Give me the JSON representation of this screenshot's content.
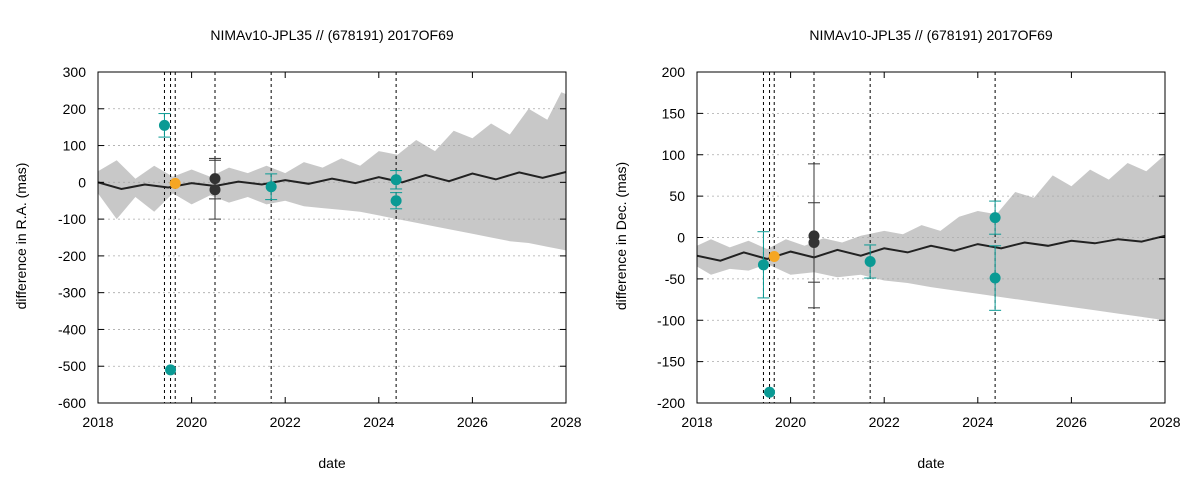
{
  "chart_data": [
    {
      "type": "scatter",
      "title": "NIMAv10-JPL35 // (678191) 2017OF69",
      "xlabel": "date",
      "ylabel": "difference in R.A. (mas)",
      "xlim": [
        2018,
        2028
      ],
      "ylim": [
        -600,
        300
      ],
      "xticks": [
        2018,
        2020,
        2022,
        2024,
        2026,
        2028
      ],
      "yticks": [
        300,
        200,
        100,
        0,
        -100,
        -200,
        -300,
        -400,
        -500,
        -600
      ],
      "grid": "horizontal dotted",
      "vlines": [
        2019.42,
        2019.55,
        2019.65,
        2020.5,
        2021.7,
        2024.37
      ],
      "model_line": [
        [
          2018,
          0
        ],
        [
          2018.5,
          -18
        ],
        [
          2019,
          -6
        ],
        [
          2019.5,
          -14
        ],
        [
          2020,
          -2
        ],
        [
          2020.5,
          -10
        ],
        [
          2021,
          2
        ],
        [
          2021.5,
          -6
        ],
        [
          2022,
          6
        ],
        [
          2022.5,
          -4
        ],
        [
          2023,
          10
        ],
        [
          2023.5,
          -2
        ],
        [
          2024,
          14
        ],
        [
          2024.5,
          0
        ],
        [
          2025,
          20
        ],
        [
          2025.5,
          3
        ],
        [
          2026,
          24
        ],
        [
          2026.5,
          8
        ],
        [
          2027,
          27
        ],
        [
          2027.5,
          12
        ],
        [
          2028,
          28
        ]
      ],
      "uncertainty_upper": [
        [
          2018,
          30
        ],
        [
          2018.4,
          60
        ],
        [
          2018.8,
          10
        ],
        [
          2019.2,
          45
        ],
        [
          2019.6,
          15
        ],
        [
          2020,
          35
        ],
        [
          2020.4,
          15
        ],
        [
          2020.8,
          40
        ],
        [
          2021.2,
          25
        ],
        [
          2021.6,
          45
        ],
        [
          2022,
          25
        ],
        [
          2022.4,
          55
        ],
        [
          2022.8,
          40
        ],
        [
          2023.2,
          65
        ],
        [
          2023.6,
          45
        ],
        [
          2024,
          85
        ],
        [
          2024.4,
          75
        ],
        [
          2024.8,
          115
        ],
        [
          2025.2,
          85
        ],
        [
          2025.6,
          140
        ],
        [
          2026,
          120
        ],
        [
          2026.4,
          160
        ],
        [
          2026.8,
          130
        ],
        [
          2027.2,
          200
        ],
        [
          2027.6,
          170
        ],
        [
          2027.9,
          245
        ],
        [
          2028,
          240
        ]
      ],
      "uncertainty_lower": [
        [
          2018,
          -30
        ],
        [
          2018.4,
          -100
        ],
        [
          2018.8,
          -40
        ],
        [
          2019.2,
          -80
        ],
        [
          2019.6,
          -30
        ],
        [
          2020,
          -60
        ],
        [
          2020.4,
          -35
        ],
        [
          2020.8,
          -55
        ],
        [
          2021.2,
          -40
        ],
        [
          2021.6,
          -60
        ],
        [
          2022,
          -50
        ],
        [
          2022.4,
          -65
        ],
        [
          2022.8,
          -70
        ],
        [
          2023.2,
          -75
        ],
        [
          2023.6,
          -80
        ],
        [
          2024,
          -90
        ],
        [
          2024.4,
          -100
        ],
        [
          2024.8,
          -110
        ],
        [
          2025.2,
          -120
        ],
        [
          2025.6,
          -130
        ],
        [
          2026,
          -140
        ],
        [
          2026.4,
          -150
        ],
        [
          2026.8,
          -160
        ],
        [
          2027.2,
          -165
        ],
        [
          2027.6,
          -175
        ],
        [
          2028,
          -185
        ]
      ],
      "points": [
        {
          "x": 2019.42,
          "y": 155,
          "err": 32,
          "group": "teal"
        },
        {
          "x": 2019.55,
          "y": -510,
          "err": 0,
          "group": "teal"
        },
        {
          "x": 2019.65,
          "y": -3,
          "err": 0,
          "group": "orange"
        },
        {
          "x": 2020.5,
          "y": 10,
          "err": 55,
          "group": "dark"
        },
        {
          "x": 2020.5,
          "y": -20,
          "err": 80,
          "group": "dark"
        },
        {
          "x": 2021.7,
          "y": -12,
          "err": 35,
          "group": "teal"
        },
        {
          "x": 2024.37,
          "y": 7,
          "err": 25,
          "group": "teal"
        },
        {
          "x": 2024.37,
          "y": -50,
          "err": 22,
          "group": "teal"
        }
      ]
    },
    {
      "type": "scatter",
      "title": "NIMAv10-JPL35 // (678191) 2017OF69",
      "xlabel": "date",
      "ylabel": "difference in Dec. (mas)",
      "xlim": [
        2018,
        2028
      ],
      "ylim": [
        -200,
        200
      ],
      "xticks": [
        2018,
        2020,
        2022,
        2024,
        2026,
        2028
      ],
      "yticks": [
        200,
        150,
        100,
        50,
        0,
        -50,
        -100,
        -150,
        -200
      ],
      "grid": "horizontal dotted",
      "vlines": [
        2019.42,
        2019.55,
        2019.65,
        2020.5,
        2021.7,
        2024.37
      ],
      "model_line": [
        [
          2018,
          -22
        ],
        [
          2018.5,
          -28
        ],
        [
          2019,
          -18
        ],
        [
          2019.5,
          -26
        ],
        [
          2020,
          -17
        ],
        [
          2020.5,
          -24
        ],
        [
          2021,
          -15
        ],
        [
          2021.5,
          -22
        ],
        [
          2022,
          -13
        ],
        [
          2022.5,
          -18
        ],
        [
          2023,
          -10
        ],
        [
          2023.5,
          -16
        ],
        [
          2024,
          -8
        ],
        [
          2024.5,
          -13
        ],
        [
          2025,
          -6
        ],
        [
          2025.5,
          -10
        ],
        [
          2026,
          -4
        ],
        [
          2026.5,
          -7
        ],
        [
          2027,
          -2
        ],
        [
          2027.5,
          -5
        ],
        [
          2028,
          2
        ]
      ],
      "uncertainty_upper": [
        [
          2018,
          -10
        ],
        [
          2018.3,
          -2
        ],
        [
          2018.7,
          -12
        ],
        [
          2019.1,
          -4
        ],
        [
          2019.5,
          -14
        ],
        [
          2019.9,
          -2
        ],
        [
          2020.3,
          -10
        ],
        [
          2020.7,
          -1
        ],
        [
          2021.1,
          -6
        ],
        [
          2021.5,
          2
        ],
        [
          2022,
          8
        ],
        [
          2022.4,
          4
        ],
        [
          2022.8,
          15
        ],
        [
          2023.2,
          8
        ],
        [
          2023.6,
          25
        ],
        [
          2024,
          32
        ],
        [
          2024.4,
          28
        ],
        [
          2024.8,
          55
        ],
        [
          2025.2,
          48
        ],
        [
          2025.6,
          75
        ],
        [
          2026,
          62
        ],
        [
          2026.4,
          82
        ],
        [
          2026.8,
          70
        ],
        [
          2027.2,
          90
        ],
        [
          2027.6,
          80
        ],
        [
          2028,
          100
        ]
      ],
      "uncertainty_lower": [
        [
          2018,
          -35
        ],
        [
          2018.3,
          -45
        ],
        [
          2018.7,
          -38
        ],
        [
          2019.1,
          -40
        ],
        [
          2019.5,
          -32
        ],
        [
          2020,
          -45
        ],
        [
          2020.5,
          -42
        ],
        [
          2021,
          -48
        ],
        [
          2021.5,
          -45
        ],
        [
          2022,
          -52
        ],
        [
          2022.5,
          -55
        ],
        [
          2023,
          -60
        ],
        [
          2023.5,
          -64
        ],
        [
          2024,
          -68
        ],
        [
          2024.5,
          -72
        ],
        [
          2025,
          -76
        ],
        [
          2025.5,
          -80
        ],
        [
          2026,
          -84
        ],
        [
          2026.5,
          -88
        ],
        [
          2027,
          -92
        ],
        [
          2027.5,
          -96
        ],
        [
          2028,
          -100
        ]
      ],
      "points": [
        {
          "x": 2019.42,
          "y": -33,
          "err": 40,
          "group": "teal"
        },
        {
          "x": 2019.55,
          "y": -187,
          "err": 0,
          "group": "teal"
        },
        {
          "x": 2019.65,
          "y": -23,
          "err": 0,
          "group": "orange"
        },
        {
          "x": 2020.5,
          "y": 2,
          "err": 87,
          "group": "dark"
        },
        {
          "x": 2020.5,
          "y": -6,
          "err": 48,
          "group": "dark"
        },
        {
          "x": 2021.7,
          "y": -29,
          "err": 20,
          "group": "teal"
        },
        {
          "x": 2024.37,
          "y": 24,
          "err": 20,
          "group": "teal"
        },
        {
          "x": 2024.37,
          "y": -49,
          "err": 39,
          "group": "teal"
        }
      ]
    }
  ],
  "colors": {
    "band": "#c8c8c8",
    "model": "#222222",
    "teal": "#0a9a94",
    "orange": "#f5a623",
    "dark": "#333333",
    "grid": "#aaaaaa"
  }
}
